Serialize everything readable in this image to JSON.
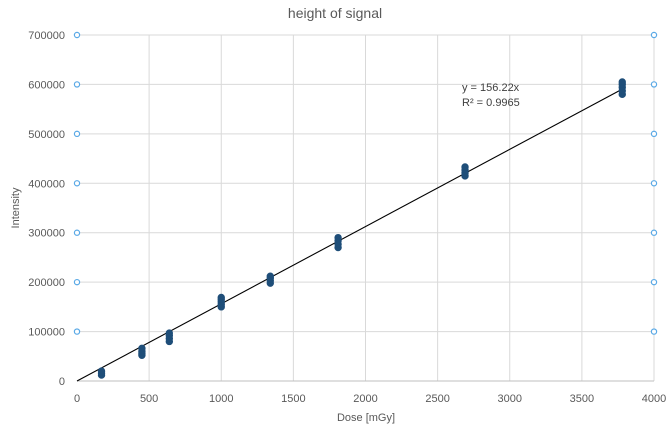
{
  "chart_data": {
    "type": "scatter",
    "title": "height of signal",
    "xlabel": "Dose [mGy]",
    "ylabel": "Intensity",
    "xlim": [
      0,
      4000
    ],
    "ylim": [
      0,
      700000
    ],
    "xticks": [
      0,
      500,
      1000,
      1500,
      2000,
      2500,
      3000,
      3500,
      4000
    ],
    "yticks": [
      0,
      100000,
      200000,
      300000,
      400000,
      500000,
      600000,
      700000
    ],
    "grid": true,
    "series": [
      {
        "color": "#1f4e79",
        "points": [
          [
            170,
            12000
          ],
          [
            170,
            16000
          ],
          [
            170,
            20000
          ],
          [
            450,
            52000
          ],
          [
            450,
            56000
          ],
          [
            450,
            60000
          ],
          [
            450,
            66000
          ],
          [
            640,
            80000
          ],
          [
            640,
            86000
          ],
          [
            640,
            92000
          ],
          [
            640,
            97000
          ],
          [
            1000,
            150000
          ],
          [
            1000,
            155000
          ],
          [
            1000,
            160000
          ],
          [
            1000,
            165000
          ],
          [
            1000,
            169000
          ],
          [
            1340,
            198000
          ],
          [
            1340,
            203000
          ],
          [
            1340,
            208000
          ],
          [
            1340,
            212000
          ],
          [
            1810,
            270000
          ],
          [
            1810,
            277000
          ],
          [
            1810,
            284000
          ],
          [
            1810,
            290000
          ],
          [
            2690,
            415000
          ],
          [
            2690,
            421000
          ],
          [
            2690,
            427000
          ],
          [
            2690,
            433000
          ],
          [
            3780,
            580000
          ],
          [
            3780,
            587000
          ],
          [
            3780,
            594000
          ],
          [
            3780,
            600000
          ],
          [
            3780,
            605000
          ]
        ]
      },
      {
        "color": "#5aa9e6",
        "marker": "hollow",
        "points": [
          [
            0,
            100000
          ],
          [
            0,
            200000
          ],
          [
            0,
            300000
          ],
          [
            0,
            400000
          ],
          [
            0,
            500000
          ],
          [
            0,
            600000
          ],
          [
            0,
            700000
          ],
          [
            4000,
            100000
          ],
          [
            4000,
            200000
          ],
          [
            4000,
            300000
          ],
          [
            4000,
            400000
          ],
          [
            4000,
            500000
          ],
          [
            4000,
            600000
          ],
          [
            4000,
            700000
          ]
        ]
      }
    ],
    "trendline": {
      "slope": 156.22,
      "x_range": [
        0,
        3780
      ],
      "color": "#000000",
      "equation": "y = 156.22x",
      "r2": "R² = 0.9965"
    }
  }
}
